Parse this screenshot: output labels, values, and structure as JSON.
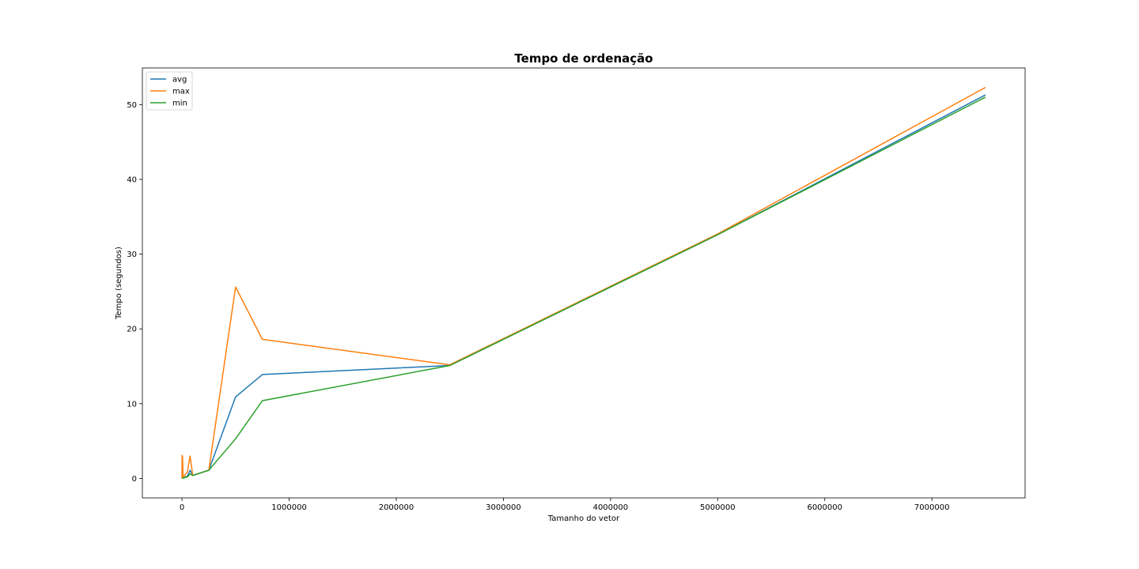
{
  "chart_data": {
    "type": "line",
    "title": "Tempo de ordenação",
    "xlabel": "Tamanho do vetor",
    "ylabel": "Tempo (segundos)",
    "xlim": [
      -370000,
      7870000
    ],
    "ylim": [
      -2.6,
      54.9
    ],
    "xticks": [
      0,
      1000000,
      2000000,
      3000000,
      4000000,
      5000000,
      6000000,
      7000000
    ],
    "xtick_labels": [
      "0",
      "1000000",
      "2000000",
      "3000000",
      "4000000",
      "5000000",
      "6000000",
      "7000000"
    ],
    "yticks": [
      0,
      10,
      20,
      30,
      40,
      50
    ],
    "ytick_labels": [
      "0",
      "10",
      "20",
      "30",
      "40",
      "50"
    ],
    "grid": false,
    "legend_position": "top-left",
    "series": [
      {
        "name": "avg",
        "color": "#1f77b4",
        "x": [
          0,
          1000,
          5000,
          10000,
          50000,
          75000,
          100000,
          250000,
          500000,
          750000,
          2500000,
          5000000,
          7500000
        ],
        "y": [
          0,
          0.1,
          0.4,
          0.05,
          0.3,
          1.1,
          0.4,
          1.1,
          10.9,
          13.9,
          15.1,
          32.6,
          51.3
        ]
      },
      {
        "name": "max",
        "color": "#ff7f0e",
        "x": [
          0,
          1000,
          5000,
          10000,
          50000,
          75000,
          100000,
          250000,
          500000,
          750000,
          2500000,
          5000000,
          7500000
        ],
        "y": [
          0,
          3.1,
          2.9,
          0.1,
          0.9,
          3.0,
          0.4,
          1.1,
          25.6,
          18.6,
          15.2,
          32.7,
          52.3
        ]
      },
      {
        "name": "min",
        "color": "#2ca02c",
        "x": [
          0,
          1000,
          5000,
          10000,
          50000,
          75000,
          100000,
          250000,
          500000,
          750000,
          2500000,
          5000000,
          7500000
        ],
        "y": [
          0,
          0.05,
          0.05,
          0.05,
          0.2,
          0.6,
          0.4,
          1.1,
          5.3,
          10.4,
          15.1,
          32.6,
          51.0
        ]
      }
    ]
  }
}
